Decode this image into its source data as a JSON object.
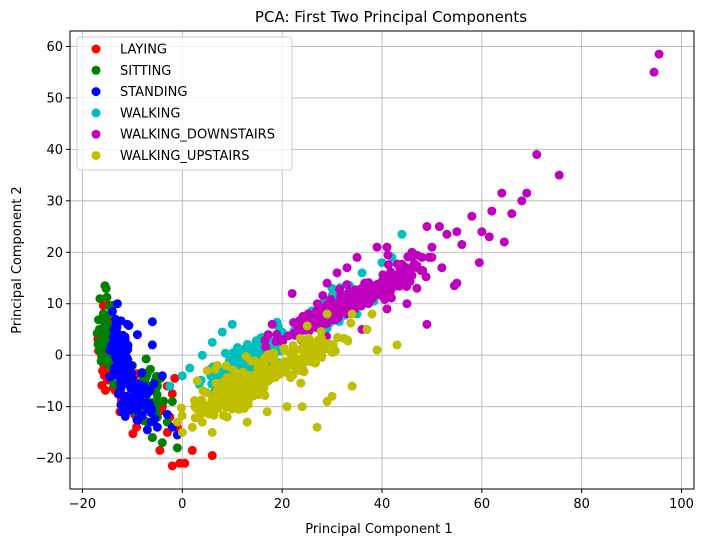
{
  "chart_data": {
    "type": "scatter",
    "title": "PCA: First Two Principal Components",
    "xlabel": "Principal Component 1",
    "ylabel": "Principal Component 2",
    "xlim": [
      -22.5,
      102.5
    ],
    "ylim": [
      -26,
      63
    ],
    "xticks": [
      -20,
      0,
      20,
      40,
      60,
      80,
      100
    ],
    "yticks": [
      -20,
      -10,
      0,
      10,
      20,
      30,
      40,
      50,
      60
    ],
    "grid": true,
    "legend_position": "top-left",
    "series": [
      {
        "name": "LAYING",
        "color": "#ff0000",
        "clusters": [
          {
            "cx": -14.5,
            "cy": 0,
            "sx": 1.6,
            "sy": 5.5,
            "n": 70,
            "slope": -0.9
          },
          {
            "cx": -10,
            "cy": -8,
            "sx": 3,
            "sy": 4,
            "n": 25,
            "slope": 0
          }
        ],
        "points": [
          [
            -2,
            -21.5
          ],
          [
            -0.5,
            -21
          ],
          [
            0.5,
            -21
          ],
          [
            2,
            -18.5
          ],
          [
            6,
            -19.5
          ],
          [
            -4.5,
            -18.5
          ],
          [
            -6,
            -16
          ],
          [
            -3,
            -15
          ],
          [
            -1,
            -14
          ],
          [
            -2.5,
            -12
          ],
          [
            -4,
            -10
          ],
          [
            -2,
            -7.5
          ],
          [
            -1.5,
            -4.5
          ],
          [
            -3,
            -6
          ],
          [
            -5,
            -5
          ],
          [
            -7,
            -7
          ],
          [
            -9,
            -9
          ],
          [
            -11,
            -9
          ]
        ]
      },
      {
        "name": "SITTING",
        "color": "#008000",
        "clusters": [
          {
            "cx": -15,
            "cy": 3,
            "sx": 1.4,
            "sy": 5,
            "n": 60,
            "slope": -0.8
          },
          {
            "cx": -7,
            "cy": -8,
            "sx": 2.5,
            "sy": 4,
            "n": 45,
            "slope": 0
          }
        ],
        "points": [
          [
            -15.5,
            13.5
          ],
          [
            -16.5,
            11
          ],
          [
            -4,
            -17
          ],
          [
            -6,
            -16
          ],
          [
            -1,
            -18
          ],
          [
            -3,
            -13
          ],
          [
            -5,
            -12
          ],
          [
            -7,
            -13
          ],
          [
            -2,
            -9
          ],
          [
            -8,
            -5
          ],
          [
            -10,
            -2
          ],
          [
            -5,
            -6
          ]
        ]
      },
      {
        "name": "STANDING",
        "color": "#0000ff",
        "clusters": [
          {
            "cx": -12.5,
            "cy": 0,
            "sx": 1.6,
            "sy": 4,
            "n": 110,
            "slope": -0.6
          },
          {
            "cx": -9,
            "cy": -8,
            "sx": 2.5,
            "sy": 3,
            "n": 70,
            "slope": 0
          }
        ],
        "points": [
          [
            -13,
            10
          ],
          [
            -6,
            6.5
          ],
          [
            -6,
            2
          ],
          [
            -14,
            8.5
          ],
          [
            -5,
            -14
          ],
          [
            -7,
            -14.5
          ],
          [
            -1,
            -15.5
          ],
          [
            -3,
            -11.5
          ],
          [
            -2,
            -14
          ],
          [
            -4,
            -4
          ],
          [
            -9,
            4
          ],
          [
            -11,
            6
          ]
        ]
      },
      {
        "name": "WALKING",
        "color": "#00bfbf",
        "clusters": [
          {
            "cx": 13,
            "cy": -0.5,
            "sx": 6,
            "sy": 2,
            "n": 140,
            "slope": 0.55
          },
          {
            "cx": 32,
            "cy": 10,
            "sx": 5,
            "sy": 2,
            "n": 70,
            "slope": 0.5
          }
        ],
        "points": [
          [
            -2.5,
            -6
          ],
          [
            0,
            -4
          ],
          [
            1.5,
            -2.5
          ],
          [
            4,
            0
          ],
          [
            6,
            2.5
          ],
          [
            8,
            4.5
          ],
          [
            10,
            6
          ],
          [
            40,
            18
          ],
          [
            44,
            23.5
          ],
          [
            38,
            12
          ],
          [
            35,
            8
          ],
          [
            25,
            6
          ],
          [
            28,
            10
          ],
          [
            36,
            16
          ],
          [
            42,
            19
          ],
          [
            30,
            13
          ]
        ]
      },
      {
        "name": "WALKING_DOWNSTAIRS",
        "color": "#bf00bf",
        "clusters": [
          {
            "cx": 30,
            "cy": 8.5,
            "sx": 7,
            "sy": 2,
            "n": 170,
            "slope": 0.5
          },
          {
            "cx": 43,
            "cy": 15,
            "sx": 4.5,
            "sy": 2.5,
            "n": 70,
            "slope": 0.5
          }
        ],
        "points": [
          [
            94.5,
            55
          ],
          [
            95.5,
            58.5
          ],
          [
            71,
            39
          ],
          [
            75.5,
            35
          ],
          [
            64,
            31.5
          ],
          [
            69,
            31.5
          ],
          [
            68,
            30
          ],
          [
            66,
            27.5
          ],
          [
            62,
            28
          ],
          [
            58,
            27
          ],
          [
            60,
            24
          ],
          [
            61.5,
            23
          ],
          [
            64.5,
            22
          ],
          [
            59.5,
            18
          ],
          [
            56,
            21.5
          ],
          [
            55,
            24
          ],
          [
            53,
            23.5
          ],
          [
            51.5,
            25
          ],
          [
            49,
            25
          ],
          [
            50,
            21
          ],
          [
            48,
            19
          ],
          [
            52,
            17
          ],
          [
            55,
            14
          ],
          [
            54.5,
            13.5
          ],
          [
            46,
            15.5
          ],
          [
            47,
            13
          ],
          [
            45,
            10
          ],
          [
            49,
            6
          ],
          [
            41,
            9
          ],
          [
            36,
            5
          ],
          [
            20,
            3
          ],
          [
            18,
            6
          ],
          [
            25,
            3
          ],
          [
            22,
            12
          ],
          [
            29,
            14
          ],
          [
            31,
            16
          ],
          [
            33,
            17
          ],
          [
            35,
            19
          ],
          [
            39,
            21
          ],
          [
            41,
            21
          ],
          [
            50,
            19
          ],
          [
            46,
            20
          ]
        ]
      },
      {
        "name": "WALKING_UPSTAIRS",
        "color": "#bfbf00",
        "clusters": [
          {
            "cx": 12,
            "cy": -6,
            "sx": 6.5,
            "sy": 3,
            "n": 200,
            "slope": 0.45
          },
          {
            "cx": 25,
            "cy": 0,
            "sx": 5,
            "sy": 2.5,
            "n": 80,
            "slope": 0.4
          }
        ],
        "points": [
          [
            -1,
            -13
          ],
          [
            0,
            -15
          ],
          [
            2,
            -14
          ],
          [
            4,
            -13
          ],
          [
            6,
            -15
          ],
          [
            9,
            -12
          ],
          [
            13,
            -13
          ],
          [
            17,
            -11
          ],
          [
            21,
            -10
          ],
          [
            24,
            -10
          ],
          [
            27,
            -14
          ],
          [
            29,
            -9
          ],
          [
            34,
            -6
          ],
          [
            30,
            -8
          ],
          [
            39,
            1
          ],
          [
            43,
            2
          ],
          [
            37,
            5
          ],
          [
            34,
            8
          ],
          [
            38,
            8
          ],
          [
            29,
            8
          ],
          [
            24,
            3
          ],
          [
            33,
            3
          ],
          [
            5,
            -3
          ],
          [
            3,
            -5
          ],
          [
            7,
            -2
          ]
        ]
      }
    ]
  }
}
